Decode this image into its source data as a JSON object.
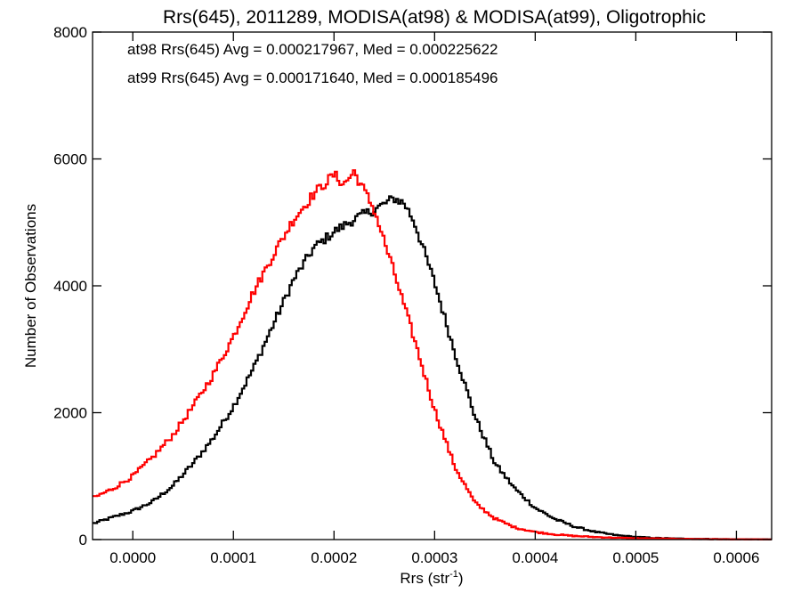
{
  "chart_data": {
    "type": "line",
    "step": true,
    "title": "Rrs(645), 2011289, MODISA(at98) & MODISA(at99), Oligotrophic",
    "xlabel_main": "Rrs (str",
    "xlabel_sup": "-1",
    "xlabel_close": ")",
    "ylabel": "Number of Observations",
    "xlim": [
      -4e-05,
      0.000635
    ],
    "ylim": [
      0,
      8000
    ],
    "x_ticks": [
      0.0,
      0.0001,
      0.0002,
      0.0003,
      0.0004,
      0.0005,
      0.0006
    ],
    "x_tick_labels": [
      "0.0000",
      "0.0001",
      "0.0002",
      "0.0003",
      "0.0004",
      "0.0005",
      "0.0006"
    ],
    "y_ticks": [
      0,
      2000,
      4000,
      6000,
      8000
    ],
    "y_tick_labels": [
      "0",
      "2000",
      "4000",
      "6000",
      "8000"
    ],
    "grid": false,
    "legend_placement": "top-left",
    "series": [
      {
        "name": "at98",
        "color": "#000000",
        "label": "at98 Rrs(645) Avg = 0.000217967, Med = 0.000225622",
        "x": [
          -4e-05,
          -2e-05,
          0.0,
          2e-05,
          4e-05,
          6e-05,
          8e-05,
          0.0001,
          0.00012,
          0.00014,
          0.00016,
          0.00018,
          0.0002,
          0.00022,
          0.00024,
          0.00026,
          0.00027,
          0.00028,
          0.0003,
          0.00032,
          0.00034,
          0.00036,
          0.00038,
          0.0004,
          0.00042,
          0.00044,
          0.00046,
          0.00048,
          0.0005,
          0.00052,
          0.00055,
          0.0006,
          0.000635
        ],
        "y": [
          250,
          350,
          450,
          600,
          850,
          1200,
          1600,
          2100,
          2700,
          3400,
          4100,
          4600,
          4850,
          5050,
          5200,
          5380,
          5300,
          5000,
          4050,
          2950,
          1950,
          1200,
          800,
          500,
          320,
          200,
          120,
          70,
          40,
          25,
          12,
          5,
          2
        ]
      },
      {
        "name": "at99",
        "color": "#ff0000",
        "label": "at99 Rrs(645) Avg = 0.000171640, Med = 0.000185496",
        "x": [
          -4e-05,
          -2e-05,
          0.0,
          2e-05,
          4e-05,
          6e-05,
          8e-05,
          0.0001,
          0.00012,
          0.00014,
          0.00016,
          0.00018,
          0.0002,
          0.00021,
          0.00022,
          0.00023,
          0.00024,
          0.00026,
          0.00028,
          0.0003,
          0.00032,
          0.00034,
          0.00036,
          0.00038,
          0.0004,
          0.00042,
          0.00044,
          0.00046,
          0.00048,
          0.0005,
          0.00055,
          0.0006,
          0.000635
        ],
        "y": [
          650,
          800,
          1000,
          1300,
          1650,
          2100,
          2600,
          3200,
          3900,
          4500,
          5050,
          5450,
          5750,
          5600,
          5800,
          5500,
          5200,
          4200,
          3150,
          2050,
          1150,
          580,
          330,
          190,
          120,
          80,
          55,
          40,
          28,
          20,
          10,
          4,
          2
        ]
      }
    ]
  }
}
